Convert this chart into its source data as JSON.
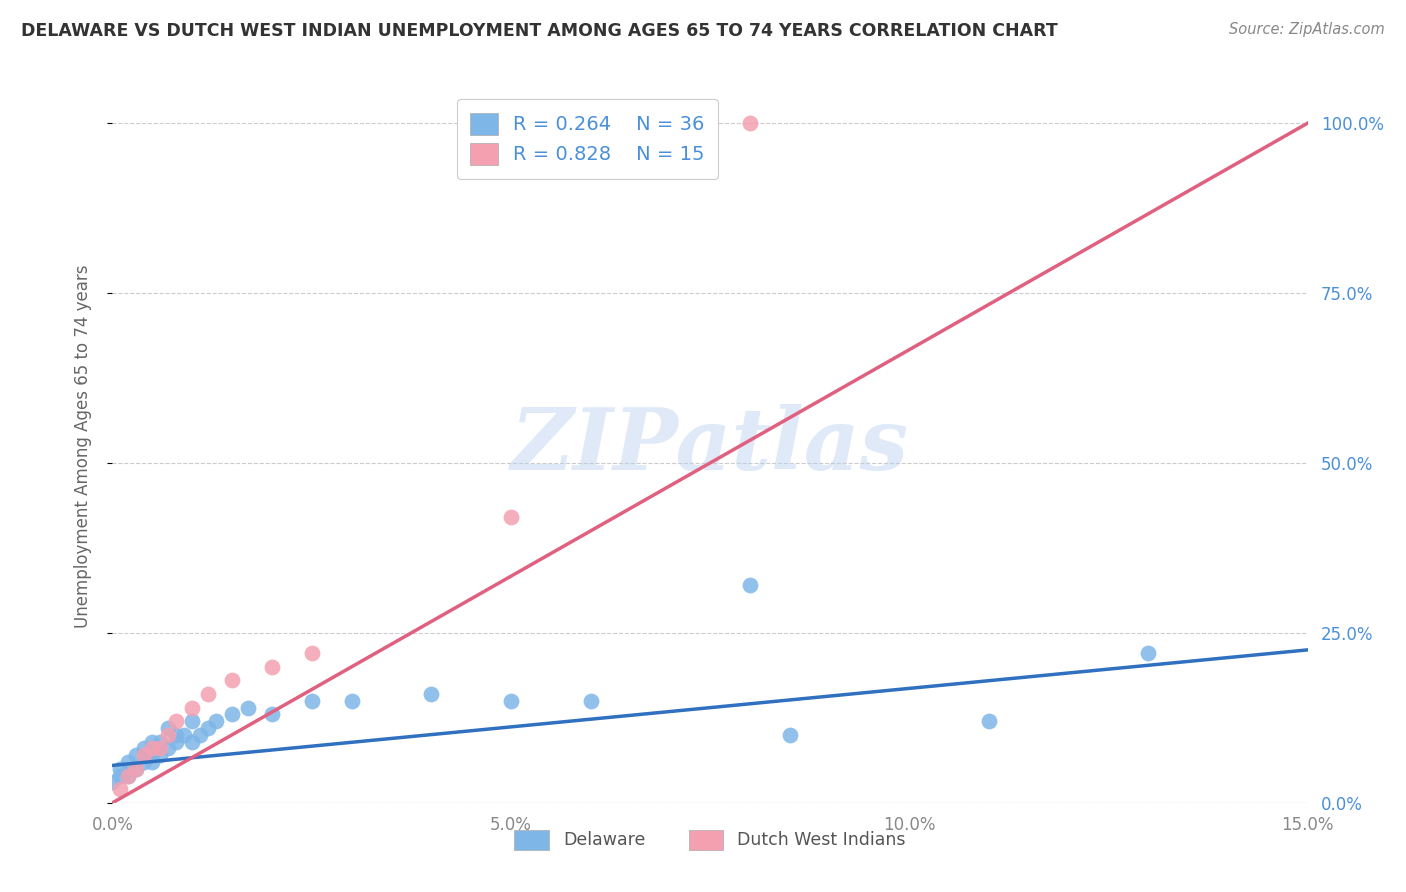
{
  "title": "DELAWARE VS DUTCH WEST INDIAN UNEMPLOYMENT AMONG AGES 65 TO 74 YEARS CORRELATION CHART",
  "source": "Source: ZipAtlas.com",
  "ylabel": "Unemployment Among Ages 65 to 74 years",
  "xlim": [
    0.0,
    0.15
  ],
  "ylim": [
    0.0,
    1.05
  ],
  "xticks": [
    0.0,
    0.05,
    0.1,
    0.15
  ],
  "xticklabels": [
    "0.0%",
    "5.0%",
    "10.0%",
    "15.0%"
  ],
  "yticks": [
    0.0,
    0.25,
    0.5,
    0.75,
    1.0
  ],
  "yticklabels": [
    "0.0%",
    "25.0%",
    "50.0%",
    "75.0%",
    "100.0%"
  ],
  "delaware_color": "#7EB6E8",
  "dutch_color": "#F4A0B0",
  "line_delaware_color": "#3070C0",
  "line_dutch_color": "#E06080",
  "legend_label_delaware": "Delaware",
  "legend_label_dutch": "Dutch West Indians",
  "watermark": "ZIPatlas",
  "watermark_color_zip": "#C8D8F0",
  "watermark_color_atlas": "#90B8E0",
  "background_color": "#FFFFFF",
  "tick_color": "#888888",
  "right_tick_color": "#4A90D9",
  "title_color": "#333333",
  "source_color": "#888888",
  "ylabel_color": "#666666",
  "delaware_x": [
    0.0,
    0.001,
    0.001,
    0.002,
    0.002,
    0.003,
    0.003,
    0.004,
    0.004,
    0.005,
    0.005,
    0.005,
    0.006,
    0.006,
    0.007,
    0.007,
    0.008,
    0.008,
    0.009,
    0.01,
    0.01,
    0.011,
    0.012,
    0.013,
    0.015,
    0.017,
    0.02,
    0.025,
    0.03,
    0.04,
    0.05,
    0.06,
    0.08,
    0.085,
    0.11,
    0.13
  ],
  "delaware_y": [
    0.03,
    0.04,
    0.05,
    0.04,
    0.06,
    0.05,
    0.07,
    0.06,
    0.08,
    0.06,
    0.07,
    0.09,
    0.07,
    0.09,
    0.08,
    0.11,
    0.09,
    0.1,
    0.1,
    0.09,
    0.12,
    0.1,
    0.11,
    0.12,
    0.13,
    0.14,
    0.13,
    0.15,
    0.15,
    0.16,
    0.15,
    0.15,
    0.32,
    0.1,
    0.12,
    0.22
  ],
  "dutch_x": [
    0.001,
    0.002,
    0.003,
    0.004,
    0.005,
    0.006,
    0.007,
    0.008,
    0.01,
    0.012,
    0.015,
    0.02,
    0.025,
    0.05,
    0.08
  ],
  "dutch_y": [
    0.02,
    0.04,
    0.05,
    0.07,
    0.08,
    0.08,
    0.1,
    0.12,
    0.14,
    0.16,
    0.18,
    0.2,
    0.22,
    0.42,
    1.0
  ],
  "del_line_x0": 0.0,
  "del_line_y0": 0.055,
  "del_line_x1": 0.15,
  "del_line_y1": 0.225,
  "dut_line_x0": 0.0,
  "dut_line_y0": 0.0,
  "dut_line_x1": 0.15,
  "dut_line_y1": 1.0
}
